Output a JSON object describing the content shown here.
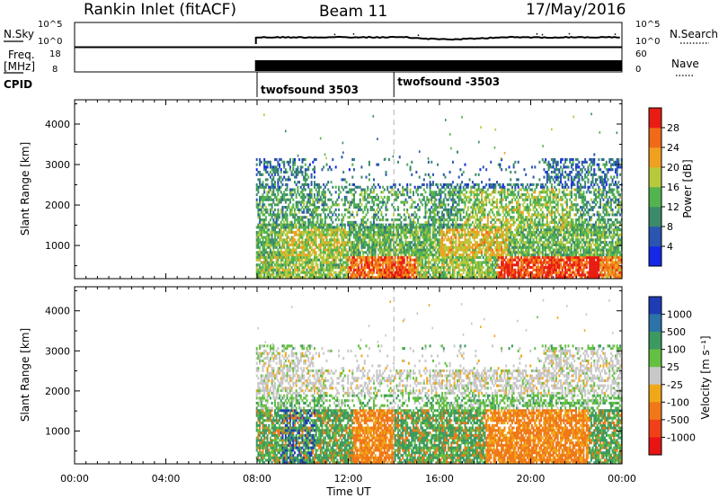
{
  "header": {
    "station": "Rankin Inlet (fitACF)",
    "beam": "Beam 11",
    "date": "17/May/2016"
  },
  "top_panels": {
    "nsky": {
      "label": "N.Sky",
      "yticks": [
        "10^5",
        "10^0"
      ],
      "right_label": "N.Search",
      "right_yticks": [
        "10^5",
        "10^0"
      ]
    },
    "freq": {
      "label_line1": "Freq.",
      "label_line2": "[MHz]",
      "yticks": [
        "18",
        "8"
      ],
      "right_label": "Nave",
      "right_yticks": [
        "60",
        "0"
      ]
    },
    "cpid": {
      "label": "CPID",
      "segments": [
        {
          "label": "twofsound 3503",
          "start": 8.0,
          "end": 14.0
        },
        {
          "label": "twofsound -3503",
          "start": 14.0,
          "end": 24.0
        }
      ]
    }
  },
  "time_axis": {
    "title": "Time UT",
    "ticks": [
      "00:00",
      "04:00",
      "08:00",
      "12:00",
      "16:00",
      "20:00",
      "00:00"
    ],
    "tick_hours": [
      0,
      4,
      8,
      12,
      16,
      20,
      24
    ]
  },
  "chart_data": [
    {
      "type": "heatmap",
      "name": "power",
      "ylabel": "Slant Range [km]",
      "yticks": [
        1000,
        2000,
        3000,
        4000
      ],
      "ylim": [
        180,
        4600
      ],
      "xlim": [
        0,
        24
      ],
      "data_start_hour": 7.95,
      "colorbar": {
        "label": "Power [dB]",
        "ticks": [
          "4",
          "8",
          "12",
          "16",
          "20",
          "24",
          "28"
        ],
        "colors": [
          "#1428e6",
          "#2a55b0",
          "#3c8a6c",
          "#52b44e",
          "#b8c83c",
          "#f0a020",
          "#f06a18",
          "#e81c14"
        ]
      }
    },
    {
      "type": "heatmap",
      "name": "velocity",
      "ylabel": "Slant Range [km]",
      "yticks": [
        1000,
        2000,
        3000,
        4000
      ],
      "ylim": [
        180,
        4600
      ],
      "xlim": [
        0,
        24
      ],
      "data_start_hour": 7.95,
      "colorbar": {
        "label": "Velocity [m s⁻¹]",
        "ticks": [
          "1000",
          "500",
          "100",
          "25",
          "-25",
          "-100",
          "-500",
          "-1000"
        ],
        "colors": [
          "#1e3cb4",
          "#2c74a8",
          "#3c9a60",
          "#64c040",
          "#c8c8c8",
          "#f0a818",
          "#f07818",
          "#f04018",
          "#e81414"
        ]
      }
    }
  ]
}
